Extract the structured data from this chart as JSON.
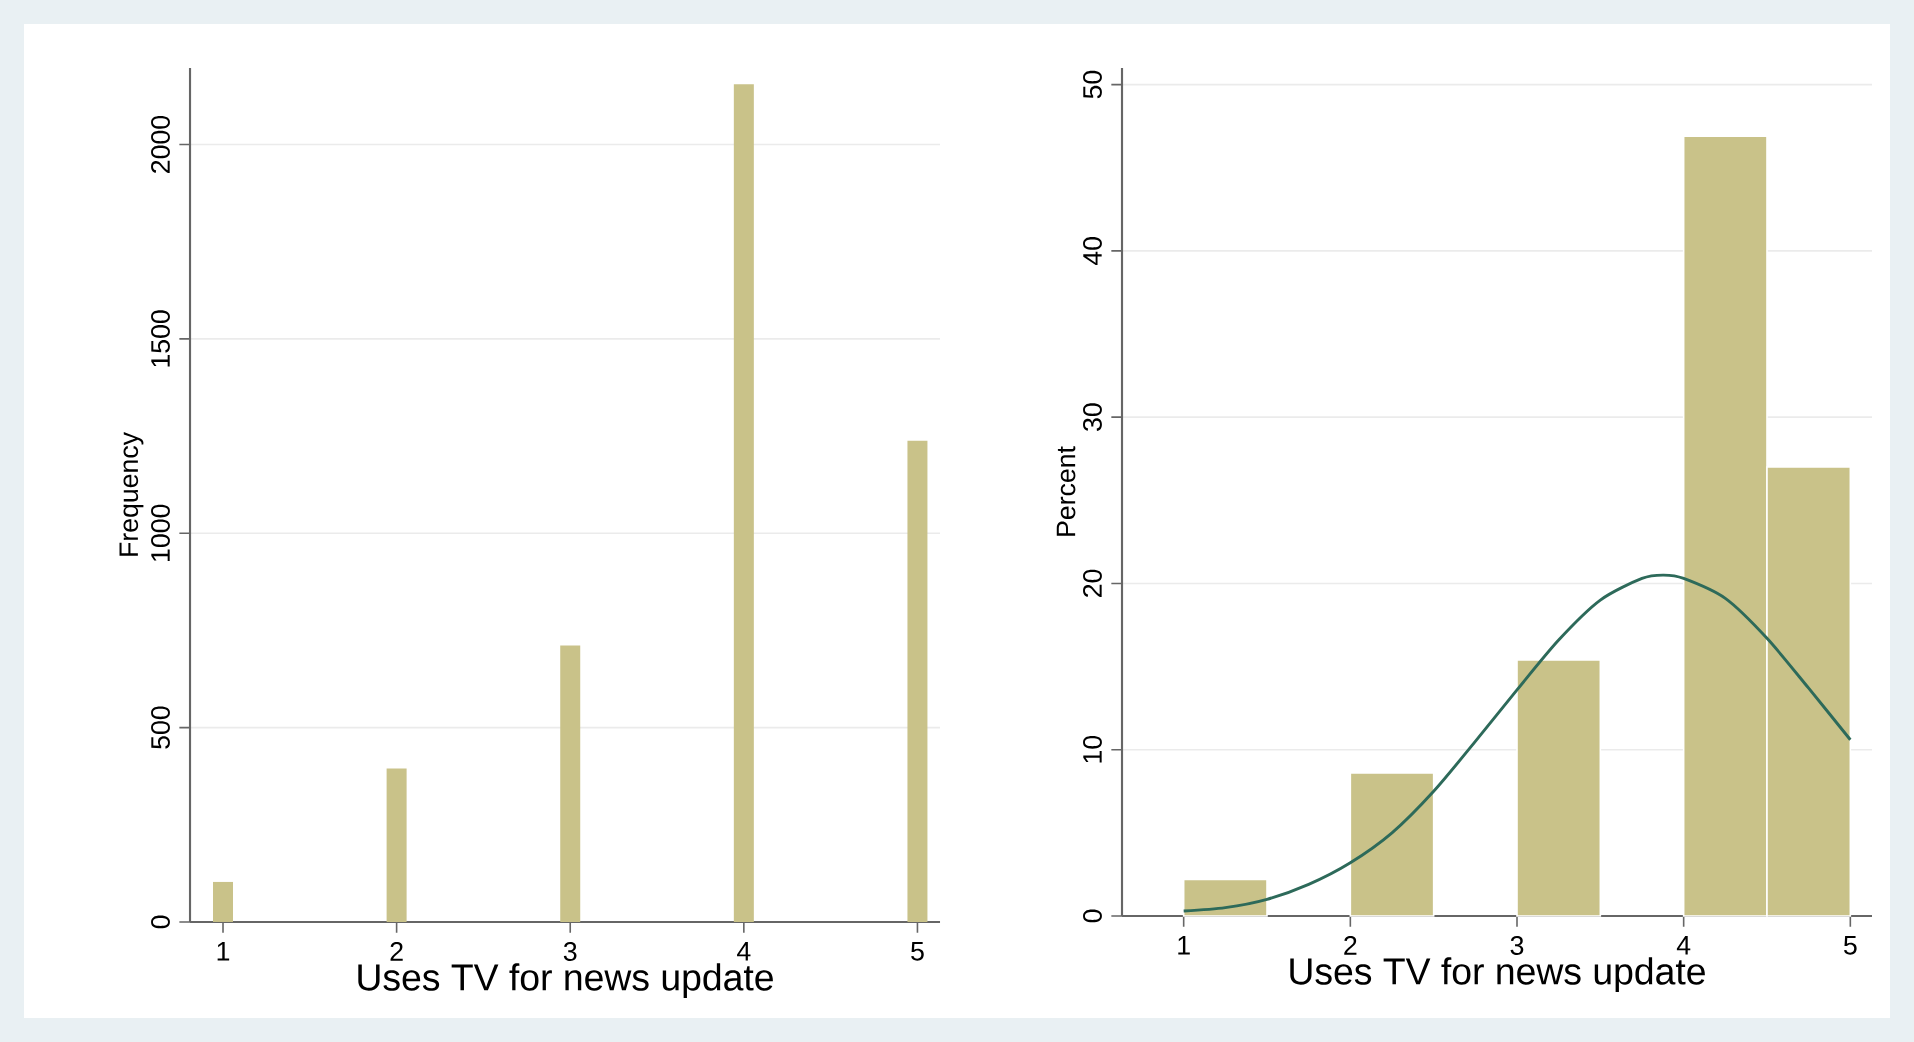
{
  "chart_data": [
    {
      "type": "bar",
      "x": [
        1,
        2,
        3,
        4,
        5
      ],
      "values": [
        103,
        395,
        711,
        2155,
        1238
      ],
      "color": "#c9c289",
      "xlim": [
        0.81,
        5.13
      ],
      "xticks": [
        1,
        2,
        3,
        4,
        5
      ],
      "ylim": [
        0,
        2197
      ],
      "yticks": [
        0,
        500,
        1000,
        1500,
        2000
      ],
      "xlabel": "Uses TV for news update",
      "ylabel": "Frequency",
      "grid": "y"
    },
    {
      "type": "histogram",
      "xlim": [
        0.63,
        5.13
      ],
      "xticks": [
        1,
        2,
        3,
        4,
        5
      ],
      "ylim": [
        0,
        51
      ],
      "yticks": [
        0,
        10,
        20,
        30,
        40,
        50
      ],
      "xlabel": "Uses TV for news update",
      "ylabel": "Percent",
      "grid": "y",
      "series": [
        {
          "type": "histogram",
          "bins": [
            1,
            1.5,
            2,
            2.5,
            3,
            3.5,
            4,
            4.5,
            5
          ],
          "values": [
            2.2,
            0,
            8.6,
            0,
            15.4,
            0,
            46.9,
            27.0
          ],
          "color": "#c9c289"
        },
        {
          "type": "line",
          "x": [
            1,
            1.25,
            1.5,
            1.75,
            2,
            2.25,
            2.5,
            2.75,
            3,
            3.25,
            3.5,
            3.75,
            3.88,
            4,
            4.25,
            4.5,
            4.75,
            5
          ],
          "values": [
            0.3,
            0.5,
            1.0,
            1.9,
            3.2,
            5.0,
            7.5,
            10.5,
            13.6,
            16.6,
            19.0,
            20.3,
            20.5,
            20.3,
            19.1,
            16.7,
            13.7,
            10.6
          ],
          "color": "#2d6a5a"
        }
      ]
    }
  ]
}
